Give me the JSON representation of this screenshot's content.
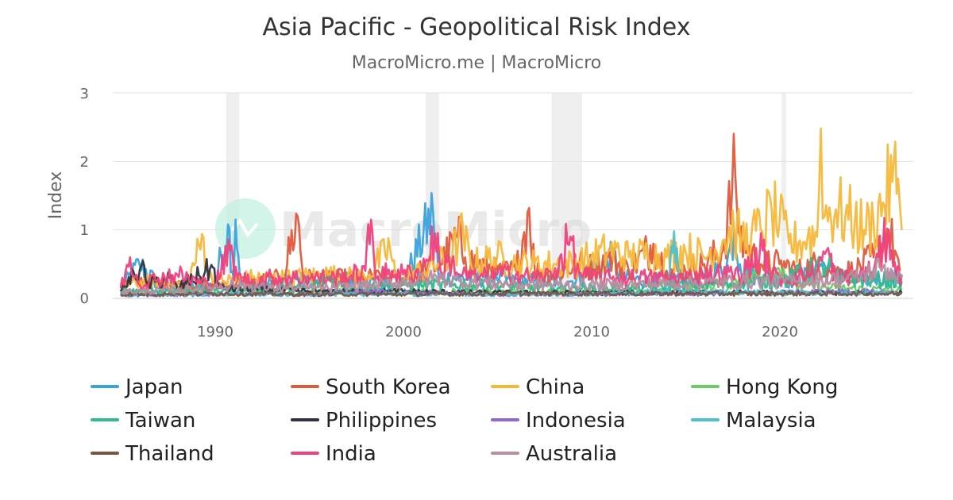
{
  "chart_data": {
    "type": "line",
    "title": "Asia Pacific - Geopolitical Risk Index",
    "subtitle": "MacroMicro.me | MacroMicro",
    "watermark": "MacroMicro",
    "xlabel": "",
    "ylabel": "Index",
    "xlim": [
      1985.0,
      2026.6
    ],
    "ylim": [
      0,
      3
    ],
    "x_ticks": [
      "1990",
      "2000",
      "2010",
      "2020"
    ],
    "y_ticks": [
      "0",
      "1",
      "2",
      "3"
    ],
    "grid": "horizontal",
    "legend_position": "bottom",
    "recession_bands": [
      [
        1990.6,
        1991.3
      ],
      [
        2001.2,
        2001.9
      ],
      [
        2007.9,
        2009.5
      ],
      [
        2020.1,
        2020.35
      ]
    ],
    "series": [
      {
        "name": "Japan",
        "color": "#3aa2dc",
        "values": [
          [
            1985.0,
            0.15
          ],
          [
            1986.0,
            0.5
          ],
          [
            1987.0,
            0.2
          ],
          [
            1988.0,
            0.18
          ],
          [
            1989.0,
            0.15
          ],
          [
            1990.0,
            0.2
          ],
          [
            1990.7,
            1.08
          ],
          [
            1991.0,
            0.3
          ],
          [
            1991.1,
            1.15
          ],
          [
            1991.4,
            0.2
          ],
          [
            1992.0,
            0.2
          ],
          [
            1994.0,
            0.25
          ],
          [
            1996.0,
            0.3
          ],
          [
            1998.0,
            0.25
          ],
          [
            2000.0,
            0.2
          ],
          [
            2001.6,
            1.25
          ],
          [
            2001.9,
            0.3
          ],
          [
            2003.0,
            0.3
          ],
          [
            2005.0,
            0.28
          ],
          [
            2007.0,
            0.25
          ],
          [
            2009.0,
            0.25
          ],
          [
            2011.2,
            0.6
          ],
          [
            2011.6,
            0.3
          ],
          [
            2013.0,
            0.25
          ],
          [
            2014.5,
            0.3
          ],
          [
            2016.0,
            0.3
          ],
          [
            2017.2,
            0.5
          ],
          [
            2017.6,
            1.0
          ],
          [
            2017.9,
            0.5
          ],
          [
            2018.5,
            0.35
          ],
          [
            2019.5,
            0.3
          ],
          [
            2021.0,
            0.25
          ],
          [
            2022.2,
            0.5
          ],
          [
            2023.0,
            0.3
          ],
          [
            2024.0,
            0.25
          ],
          [
            2025.0,
            0.3
          ],
          [
            2026.4,
            0.3
          ]
        ]
      },
      {
        "name": "South Korea",
        "color": "#e05a3c",
        "values": [
          [
            1985.0,
            0.2
          ],
          [
            1986.0,
            0.25
          ],
          [
            1988.0,
            0.2
          ],
          [
            1990.0,
            0.2
          ],
          [
            1992.0,
            0.25
          ],
          [
            1993.6,
            0.3
          ],
          [
            1994.4,
            1.2
          ],
          [
            1994.7,
            0.3
          ],
          [
            1996.0,
            0.3
          ],
          [
            1998.0,
            0.3
          ],
          [
            2000.0,
            0.3
          ],
          [
            2002.0,
            0.5
          ],
          [
            2002.9,
            0.9
          ],
          [
            2003.3,
            0.6
          ],
          [
            2004.0,
            0.5
          ],
          [
            2005.0,
            0.4
          ],
          [
            2006.0,
            0.4
          ],
          [
            2006.7,
            1.32
          ],
          [
            2007.0,
            0.4
          ],
          [
            2008.0,
            0.35
          ],
          [
            2009.3,
            0.5
          ],
          [
            2010.2,
            0.45
          ],
          [
            2010.9,
            0.6
          ],
          [
            2012.0,
            0.4
          ],
          [
            2013.3,
            0.8
          ],
          [
            2014.0,
            0.4
          ],
          [
            2015.0,
            0.4
          ],
          [
            2016.0,
            0.5
          ],
          [
            2017.0,
            0.7
          ],
          [
            2017.65,
            1.82
          ],
          [
            2017.9,
            0.9
          ],
          [
            2018.3,
            0.7
          ],
          [
            2019.0,
            0.5
          ],
          [
            2020.0,
            0.5
          ],
          [
            2021.0,
            0.4
          ],
          [
            2022.0,
            0.5
          ],
          [
            2023.0,
            0.4
          ],
          [
            2024.0,
            0.4
          ],
          [
            2025.0,
            0.6
          ],
          [
            2025.8,
            1.0
          ],
          [
            2026.4,
            0.4
          ]
        ]
      },
      {
        "name": "China",
        "color": "#f5b83a",
        "values": [
          [
            1985.0,
            0.2
          ],
          [
            1987.0,
            0.25
          ],
          [
            1988.5,
            0.2
          ],
          [
            1989.4,
            0.88
          ],
          [
            1989.7,
            0.3
          ],
          [
            1990.5,
            0.25
          ],
          [
            1992.0,
            0.3
          ],
          [
            1994.0,
            0.3
          ],
          [
            1996.0,
            0.35
          ],
          [
            1998.0,
            0.3
          ],
          [
            1999.3,
            0.75
          ],
          [
            1999.6,
            0.3
          ],
          [
            2001.0,
            0.4
          ],
          [
            2002.5,
            0.6
          ],
          [
            2003.2,
            0.95
          ],
          [
            2003.6,
            0.5
          ],
          [
            2005.0,
            0.6
          ],
          [
            2006.0,
            0.5
          ],
          [
            2007.0,
            0.5
          ],
          [
            2008.0,
            0.5
          ],
          [
            2009.0,
            0.5
          ],
          [
            2010.0,
            0.6
          ],
          [
            2011.0,
            0.7
          ],
          [
            2012.0,
            0.6
          ],
          [
            2013.0,
            0.65
          ],
          [
            2014.0,
            0.6
          ],
          [
            2015.0,
            0.7
          ],
          [
            2016.0,
            0.6
          ],
          [
            2017.0,
            0.85
          ],
          [
            2017.6,
            1.0
          ],
          [
            2018.0,
            0.85
          ],
          [
            2018.5,
            0.9
          ],
          [
            2019.0,
            1.0
          ],
          [
            2019.6,
            1.25
          ],
          [
            2020.0,
            1.1
          ],
          [
            2020.5,
            0.8
          ],
          [
            2021.0,
            0.8
          ],
          [
            2021.5,
            0.9
          ],
          [
            2022.0,
            0.9
          ],
          [
            2022.2,
            2.48
          ],
          [
            2022.4,
            1.2
          ],
          [
            2023.0,
            1.3
          ],
          [
            2023.5,
            1.2
          ],
          [
            2024.0,
            1.1
          ],
          [
            2024.5,
            1.0
          ],
          [
            2025.0,
            1.1
          ],
          [
            2025.5,
            1.4
          ],
          [
            2026.0,
            1.7
          ],
          [
            2026.3,
            1.75
          ],
          [
            2026.5,
            1.0
          ]
        ]
      },
      {
        "name": "Hong Kong",
        "color": "#6ecb63",
        "values": [
          [
            1985.0,
            0.08
          ],
          [
            1990.0,
            0.1
          ],
          [
            1995.0,
            0.1
          ],
          [
            2000.0,
            0.1
          ],
          [
            2005.0,
            0.1
          ],
          [
            2010.0,
            0.1
          ],
          [
            2015.0,
            0.12
          ],
          [
            2019.5,
            0.35
          ],
          [
            2020.2,
            0.45
          ],
          [
            2020.6,
            0.2
          ],
          [
            2023.0,
            0.15
          ],
          [
            2026.5,
            0.12
          ]
        ]
      },
      {
        "name": "Taiwan",
        "color": "#2dbb91",
        "values": [
          [
            1985.0,
            0.1
          ],
          [
            1990.0,
            0.12
          ],
          [
            1995.0,
            0.15
          ],
          [
            1996.0,
            0.3
          ],
          [
            1997.0,
            0.15
          ],
          [
            2000.0,
            0.2
          ],
          [
            2004.0,
            0.2
          ],
          [
            2008.0,
            0.15
          ],
          [
            2012.0,
            0.15
          ],
          [
            2016.0,
            0.2
          ],
          [
            2020.0,
            0.25
          ],
          [
            2022.6,
            0.5
          ],
          [
            2023.0,
            0.3
          ],
          [
            2026.5,
            0.25
          ]
        ]
      },
      {
        "name": "Philippines",
        "color": "#2e3440",
        "values": [
          [
            1985.0,
            0.1
          ],
          [
            1986.1,
            0.48
          ],
          [
            1986.4,
            0.2
          ],
          [
            1987.6,
            0.3
          ],
          [
            1988.0,
            0.15
          ],
          [
            1989.9,
            0.45
          ],
          [
            1990.2,
            0.15
          ],
          [
            1995.0,
            0.1
          ],
          [
            2000.0,
            0.1
          ],
          [
            2005.0,
            0.08
          ],
          [
            2010.0,
            0.08
          ],
          [
            2015.0,
            0.08
          ],
          [
            2020.0,
            0.08
          ],
          [
            2026.5,
            0.08
          ]
        ]
      },
      {
        "name": "Indonesia",
        "color": "#8e66d6",
        "values": [
          [
            1985.0,
            0.05
          ],
          [
            1990.0,
            0.06
          ],
          [
            1995.0,
            0.06
          ],
          [
            1999.0,
            0.1
          ],
          [
            2000.0,
            0.08
          ],
          [
            2005.0,
            0.06
          ],
          [
            2010.0,
            0.06
          ],
          [
            2015.0,
            0.07
          ],
          [
            2020.0,
            0.08
          ],
          [
            2023.0,
            0.1
          ],
          [
            2026.5,
            0.08
          ]
        ]
      },
      {
        "name": "Malaysia",
        "color": "#4cc1cc",
        "values": [
          [
            1985.0,
            0.05
          ],
          [
            1990.0,
            0.06
          ],
          [
            1995.0,
            0.06
          ],
          [
            2000.0,
            0.06
          ],
          [
            2005.0,
            0.06
          ],
          [
            2010.0,
            0.06
          ],
          [
            2014.1,
            0.1
          ],
          [
            2014.4,
            0.98
          ],
          [
            2014.7,
            0.1
          ],
          [
            2020.0,
            0.08
          ],
          [
            2026.5,
            0.08
          ]
        ]
      },
      {
        "name": "Thailand",
        "color": "#7a5544",
        "values": [
          [
            1985.0,
            0.06
          ],
          [
            1990.0,
            0.07
          ],
          [
            1995.0,
            0.06
          ],
          [
            2000.0,
            0.06
          ],
          [
            2005.0,
            0.07
          ],
          [
            2010.0,
            0.07
          ],
          [
            2015.0,
            0.07
          ],
          [
            2020.0,
            0.07
          ],
          [
            2026.5,
            0.07
          ]
        ]
      },
      {
        "name": "India",
        "color": "#f0417e",
        "values": [
          [
            1985.0,
            0.15
          ],
          [
            1985.5,
            0.6
          ],
          [
            1986.0,
            0.2
          ],
          [
            1987.0,
            0.3
          ],
          [
            1988.0,
            0.35
          ],
          [
            1989.0,
            0.25
          ],
          [
            1990.0,
            0.2
          ],
          [
            1990.8,
            0.7
          ],
          [
            1991.2,
            0.3
          ],
          [
            1992.0,
            0.25
          ],
          [
            1993.0,
            0.3
          ],
          [
            1994.0,
            0.3
          ],
          [
            1995.0,
            0.3
          ],
          [
            1996.0,
            0.3
          ],
          [
            1997.0,
            0.3
          ],
          [
            1998.0,
            0.4
          ],
          [
            1998.3,
            1.15
          ],
          [
            1998.6,
            0.3
          ],
          [
            1999.4,
            0.4
          ],
          [
            2000.0,
            0.35
          ],
          [
            2001.0,
            0.4
          ],
          [
            2001.7,
            0.95
          ],
          [
            2002.0,
            0.4
          ],
          [
            2002.6,
            0.55
          ],
          [
            2003.0,
            0.35
          ],
          [
            2004.0,
            0.3
          ],
          [
            2005.0,
            0.35
          ],
          [
            2006.0,
            0.35
          ],
          [
            2007.0,
            0.3
          ],
          [
            2008.0,
            0.35
          ],
          [
            2008.9,
            0.9
          ],
          [
            2009.2,
            0.4
          ],
          [
            2010.0,
            0.3
          ],
          [
            2011.0,
            0.3
          ],
          [
            2012.0,
            0.3
          ],
          [
            2013.0,
            0.3
          ],
          [
            2014.0,
            0.3
          ],
          [
            2015.0,
            0.3
          ],
          [
            2016.0,
            0.35
          ],
          [
            2017.0,
            0.35
          ],
          [
            2018.0,
            0.35
          ],
          [
            2019.1,
            0.7
          ],
          [
            2019.5,
            0.35
          ],
          [
            2020.0,
            0.3
          ],
          [
            2021.0,
            0.3
          ],
          [
            2022.0,
            0.4
          ],
          [
            2022.5,
            0.7
          ],
          [
            2023.0,
            0.3
          ],
          [
            2024.0,
            0.35
          ],
          [
            2025.0,
            0.4
          ],
          [
            2025.5,
            0.75
          ],
          [
            2025.8,
            1.0
          ],
          [
            2026.2,
            0.35
          ],
          [
            2026.5,
            0.35
          ]
        ]
      },
      {
        "name": "Australia",
        "color": "#b88ea0",
        "values": [
          [
            1985.0,
            0.1
          ],
          [
            1988.0,
            0.12
          ],
          [
            1991.0,
            0.2
          ],
          [
            1993.0,
            0.15
          ],
          [
            1996.0,
            0.15
          ],
          [
            1999.0,
            0.2
          ],
          [
            2001.8,
            0.3
          ],
          [
            2003.0,
            0.25
          ],
          [
            2006.0,
            0.2
          ],
          [
            2009.0,
            0.2
          ],
          [
            2012.0,
            0.2
          ],
          [
            2015.0,
            0.22
          ],
          [
            2018.0,
            0.25
          ],
          [
            2021.0,
            0.25
          ],
          [
            2024.0,
            0.3
          ],
          [
            2025.5,
            0.45
          ],
          [
            2026.5,
            0.3
          ]
        ]
      }
    ]
  }
}
